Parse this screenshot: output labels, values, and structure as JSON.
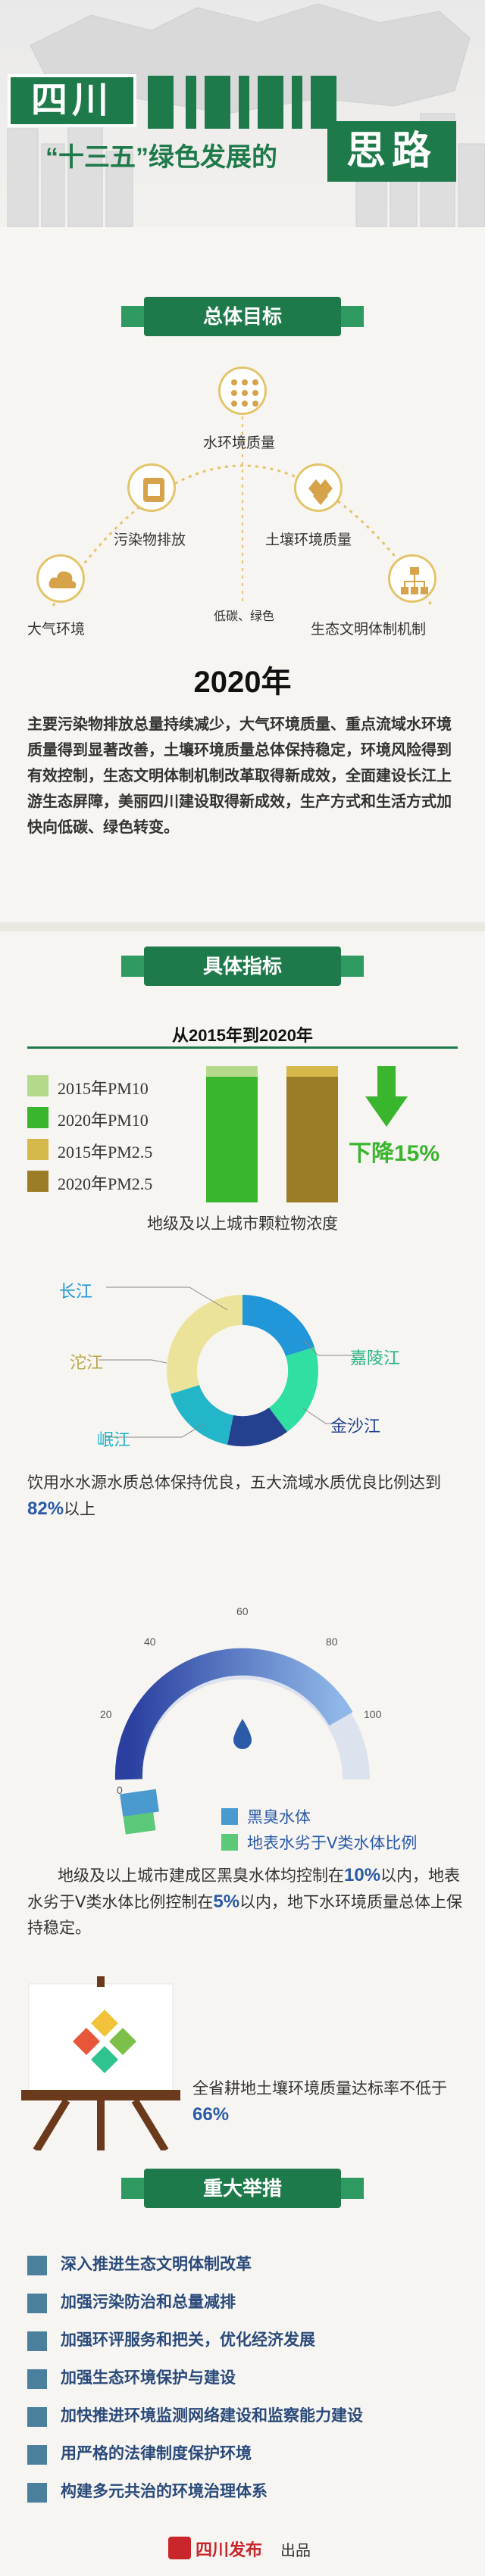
{
  "header": {
    "region": "四川",
    "subtitle": "“十三五”绿色发展的",
    "highlight": "思路"
  },
  "goals": {
    "banner": "总体目标",
    "items": [
      {
        "label": "水环境质量",
        "icon": "water-grid-icon"
      },
      {
        "label": "污染物排放",
        "icon": "pollution-icon"
      },
      {
        "label": "土壤环境质量",
        "icon": "soil-icon"
      },
      {
        "label": "大气环境",
        "icon": "cloud-icon"
      },
      {
        "label": "生态文明体制机制",
        "icon": "org-chart-icon"
      }
    ],
    "center_label": "低碳、绿色",
    "year": "2020年",
    "paragraph": "主要污染物排放总量持续减少，大气环境质量、重点流域水环境质量得到显著改善，土壤环境质量总体保持稳定，环境风险得到有效控制，生态文明体制机制改革取得新成效，全面建设长江上游生态屏障，美丽四川建设取得新成效，生产方式和生活方式加快向低碳、绿色转变。"
  },
  "indicators": {
    "banner": "具体指标",
    "period": "从2015年到2020年",
    "pm_caption": "地级及以上城市颗粒物浓度",
    "pm_change": "下降15%",
    "water_caption_pre": "饮用水水源水质总体保持优良，五大流域水质优良比例达到",
    "water_caption_pct": "82%",
    "water_caption_post": "以上",
    "rivers": [
      "长江",
      "嘉陵江",
      "金沙江",
      "岷江",
      "沱江"
    ],
    "gauge_ticks": [
      "0",
      "20",
      "40",
      "60",
      "80",
      "100"
    ],
    "gauge_legend": [
      "黑臭水体",
      "地表水劣于Ⅴ类水体比例"
    ],
    "black_water_text_1": "地级及以上城市建成区黑臭水体均控制在",
    "black_water_pct": "10%",
    "black_water_text_2": "以内，地表水劣于Ⅴ类水体比例控制在",
    "worse_v_pct": "5%",
    "black_water_text_3": "以内，地下水环境质量总体上保持稳定。",
    "soil_text": "全省耕地土壤环境质量达标率不低于",
    "soil_pct": "66%"
  },
  "chart_data": [
    {
      "type": "bar",
      "title": "从2015年到2020年",
      "xlabel": "地级及以上城市颗粒物浓度",
      "categories": [
        "PM10",
        "PM2.5"
      ],
      "series": [
        {
          "name": "2015年PM10",
          "color": "#b5d98a"
        },
        {
          "name": "2020年PM10",
          "color": "#3ab52e"
        },
        {
          "name": "2015年PM2.5",
          "color": "#d6b74a"
        },
        {
          "name": "2020年PM2.5",
          "color": "#9a7d26"
        }
      ],
      "annotation": "下降15%"
    }
  ],
  "measures": {
    "banner": "重大举措",
    "items": [
      "深入推进生态文明体制改革",
      "加强污染防治和总量减排",
      "加强环评服务和把关，优化经济发展",
      "加强生态环境保护与建设",
      "加快推进环境监测网络建设和监察能力建设",
      "用严格的法律制度保护环境",
      "构建多元共治的环境治理体系"
    ]
  },
  "footer": {
    "brand": "四川发布",
    "suffix": "出品"
  },
  "colors": {
    "primary_green": "#1e7a4a",
    "bright_green": "#3ab52e",
    "gold": "#d6b74a",
    "measure_blue": "#4a7f9e"
  }
}
